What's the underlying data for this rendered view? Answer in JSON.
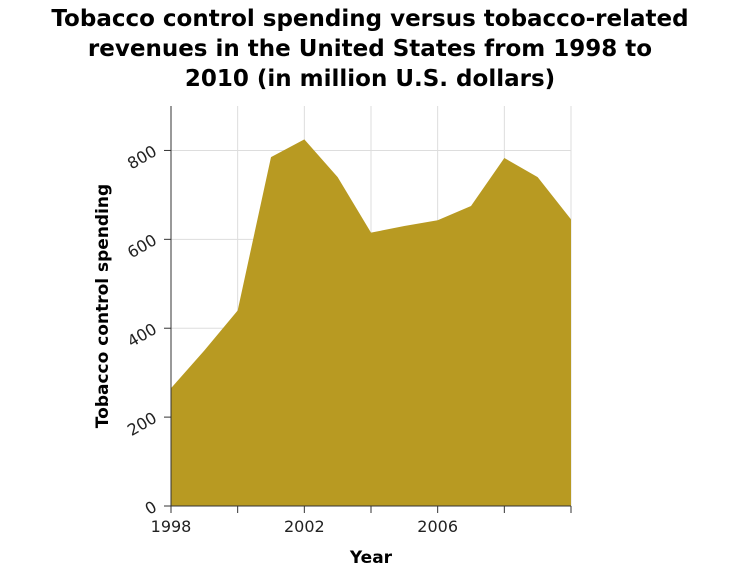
{
  "chart_data": {
    "type": "area",
    "title_lines": [
      "Tobacco control spending versus tobacco-related",
      "revenues in the United States from 1998 to",
      "2010 (in million U.S. dollars)"
    ],
    "xlabel": "Year",
    "ylabel": "Tobacco control spending",
    "x": [
      1998,
      1999,
      2000,
      2001,
      2002,
      2003,
      2004,
      2005,
      2006,
      2007,
      2008,
      2009,
      2010
    ],
    "values": [
      265,
      350,
      440,
      785,
      825,
      740,
      615,
      630,
      643,
      675,
      783,
      740,
      645
    ],
    "xlim": [
      1998,
      2010
    ],
    "ylim": [
      0,
      900
    ],
    "x_ticks": [
      1998,
      2000,
      2002,
      2004,
      2006,
      2008,
      2010
    ],
    "x_tick_labels": [
      "1998",
      "",
      "2002",
      "",
      "2006",
      "",
      ""
    ],
    "y_ticks": [
      0,
      200,
      400,
      600,
      800
    ],
    "y_tick_labels": [
      "0",
      "200",
      "400",
      "600",
      "800"
    ],
    "fill_color": "#b89a22",
    "grid": true,
    "legend": "none"
  }
}
